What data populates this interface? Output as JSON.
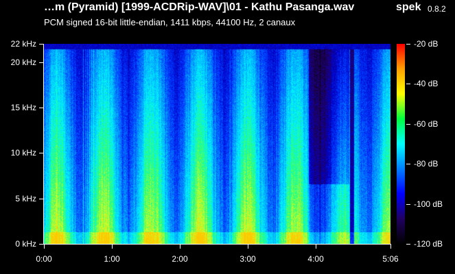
{
  "header": {
    "file_title": "…m (Pyramid) [1999-ACDRip-WAV]\\01 - Kathu Pasanga.wav",
    "app_name": "spek",
    "app_version": "0.8.2",
    "info": "PCM signed 16-bit little-endian, 1411 kbps, 44100 Hz, 2 canaux"
  },
  "frequency_axis": {
    "max_khz": 22,
    "labels": [
      {
        "text": "22 kHz",
        "khz": 22
      },
      {
        "text": "20 kHz",
        "khz": 20
      },
      {
        "text": "15 kHz",
        "khz": 15
      },
      {
        "text": "10 kHz",
        "khz": 10
      },
      {
        "text": "5 kHz",
        "khz": 5
      },
      {
        "text": "0 kHz",
        "khz": 0
      }
    ]
  },
  "time_axis": {
    "duration_seconds": 306,
    "labels": [
      {
        "text": "0:00",
        "seconds": 0
      },
      {
        "text": "1:00",
        "seconds": 60
      },
      {
        "text": "2:00",
        "seconds": 120
      },
      {
        "text": "3:00",
        "seconds": 180
      },
      {
        "text": "4:00",
        "seconds": 240
      },
      {
        "text": "5:06",
        "seconds": 306
      }
    ]
  },
  "db_scale": {
    "max_db": -20,
    "min_db": -120,
    "labels": [
      {
        "text": "-20 dB",
        "db": -20
      },
      {
        "text": "-40 dB",
        "db": -40
      },
      {
        "text": "-60 dB",
        "db": -60
      },
      {
        "text": "-80 dB",
        "db": -80
      },
      {
        "text": "-100 dB",
        "db": -100
      },
      {
        "text": "-120 dB",
        "db": -120
      }
    ],
    "gradient_colors": [
      "#ff0000",
      "#ffa000",
      "#ffff00",
      "#00ff40",
      "#00ffff",
      "#0080ff",
      "#0000ff",
      "#200060",
      "#000000"
    ]
  },
  "spectrogram": {
    "colors": {
      "low": "#1060ff",
      "mid": "#20c0ff",
      "high": "#40ff80",
      "peak": "#d0ff30"
    }
  }
}
